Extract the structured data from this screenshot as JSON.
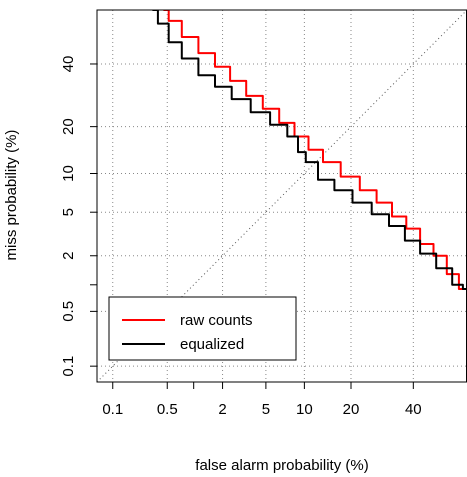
{
  "chart_data": {
    "type": "line",
    "title": "",
    "xlabel": "false alarm probability (%)",
    "ylabel": "miss probability (%)",
    "scale": "probit (normal deviate)",
    "xlim": [
      0.06,
      60
    ],
    "ylim": [
      0.06,
      60
    ],
    "x_tick_labels": [
      "0.1",
      "0.5",
      "2",
      "5",
      "10",
      "20",
      "40"
    ],
    "y_tick_labels": [
      "0.1",
      "0.5",
      "2",
      "5",
      "10",
      "20",
      "40"
    ],
    "grid": true,
    "diagonal_reference": true,
    "legend_position": "bottom-left",
    "series": [
      {
        "name": "raw counts",
        "color": "#ff0000",
        "points": [
          [
            0.45,
            60
          ],
          [
            0.6,
            56
          ],
          [
            0.9,
            50
          ],
          [
            1.4,
            44
          ],
          [
            2.0,
            39
          ],
          [
            2.8,
            34
          ],
          [
            4.0,
            29
          ],
          [
            5.5,
            25
          ],
          [
            7.5,
            21
          ],
          [
            9.5,
            17.5
          ],
          [
            12,
            14.5
          ],
          [
            15,
            12
          ],
          [
            20,
            9.5
          ],
          [
            25,
            7.5
          ],
          [
            30,
            6
          ],
          [
            35,
            4.6
          ],
          [
            40,
            3.6
          ],
          [
            45,
            2.6
          ],
          [
            50,
            2.0
          ],
          [
            55,
            1.3
          ],
          [
            59,
            0.9
          ]
        ]
      },
      {
        "name": "equalized",
        "color": "#000000",
        "points": [
          [
            0.33,
            60
          ],
          [
            0.45,
            55
          ],
          [
            0.6,
            48
          ],
          [
            0.9,
            42
          ],
          [
            1.4,
            36
          ],
          [
            2.0,
            32
          ],
          [
            3.0,
            28
          ],
          [
            4.5,
            24
          ],
          [
            6.5,
            20.5
          ],
          [
            8.5,
            17.5
          ],
          [
            9.5,
            14
          ],
          [
            11,
            12
          ],
          [
            14,
            9
          ],
          [
            18,
            7.5
          ],
          [
            23,
            6
          ],
          [
            29,
            4.8
          ],
          [
            34,
            3.8
          ],
          [
            40,
            2.8
          ],
          [
            45,
            2.1
          ],
          [
            52,
            1.5
          ],
          [
            57,
            1.0
          ],
          [
            60,
            0.9
          ]
        ]
      }
    ]
  }
}
